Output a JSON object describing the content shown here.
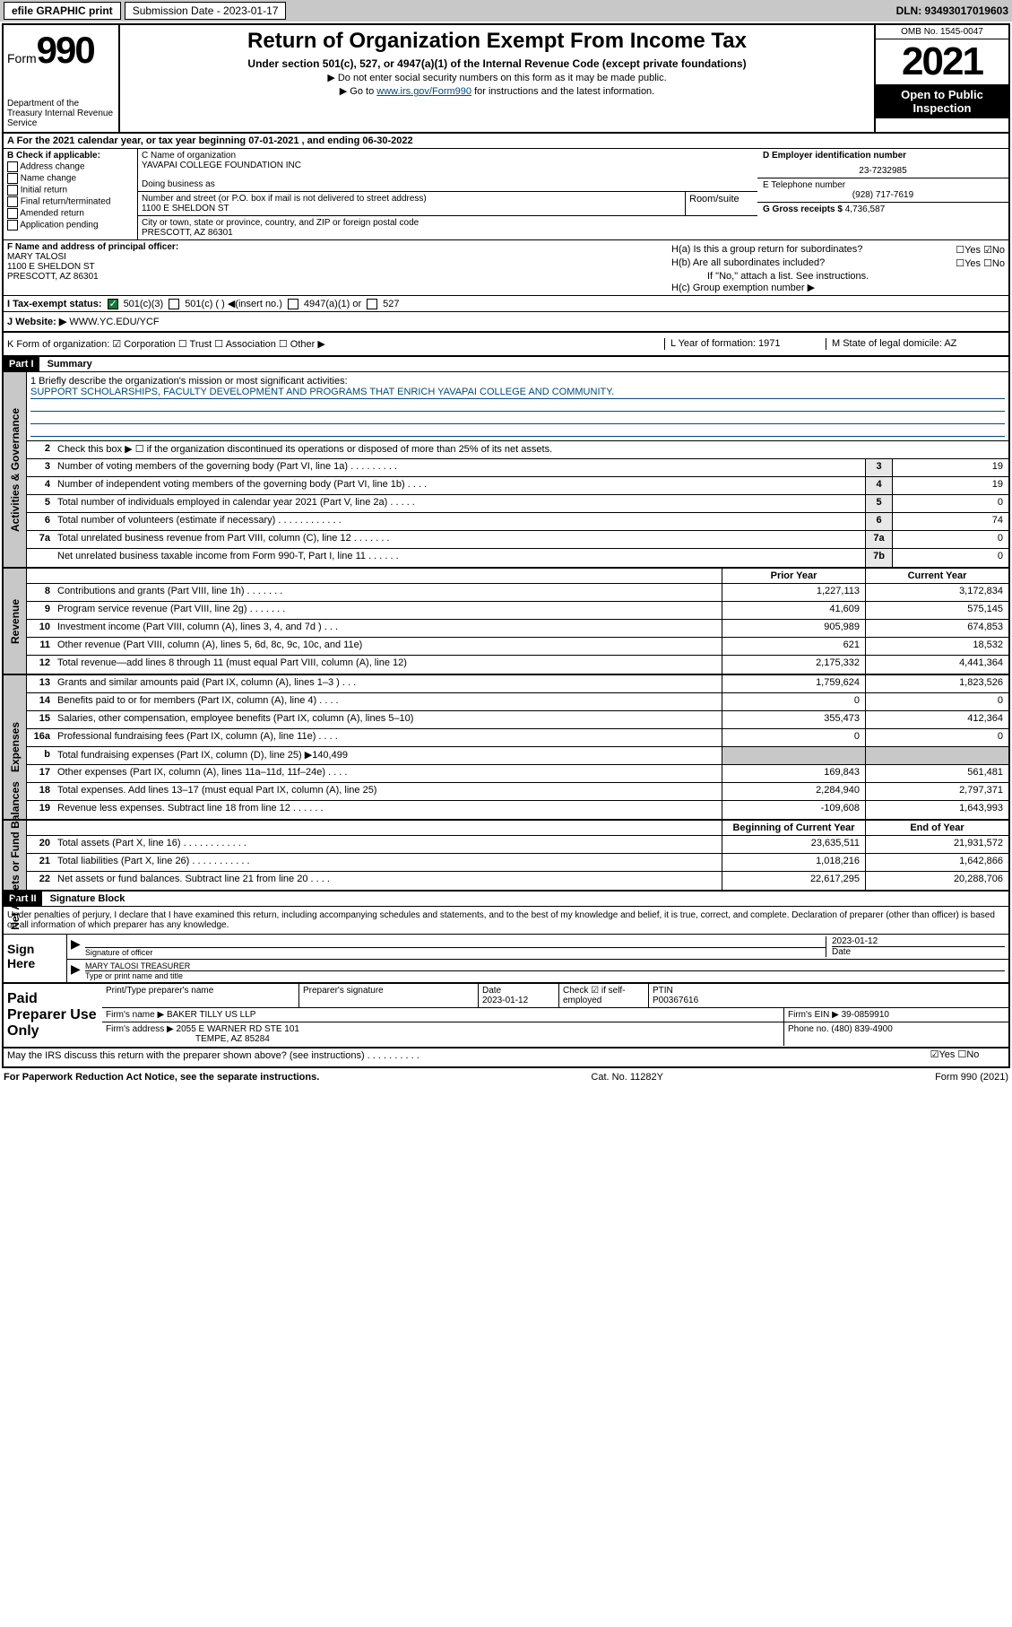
{
  "topbar": {
    "efile": "efile GRAPHIC print",
    "subdate_label": "Submission Date - 2023-01-17",
    "dln": "DLN: 93493017019603"
  },
  "header": {
    "form_label": "Form",
    "form_num": "990",
    "dept": "Department of the Treasury Internal Revenue Service",
    "title": "Return of Organization Exempt From Income Tax",
    "subtitle": "Under section 501(c), 527, or 4947(a)(1) of the Internal Revenue Code (except private foundations)",
    "note1": "▶ Do not enter social security numbers on this form as it may be made public.",
    "note2_pre": "▶ Go to ",
    "note2_link": "www.irs.gov/Form990",
    "note2_post": " for instructions and the latest information.",
    "omb": "OMB No. 1545-0047",
    "year": "2021",
    "otp": "Open to Public Inspection"
  },
  "row_a": "A For the 2021 calendar year, or tax year beginning 07-01-2021  , and ending 06-30-2022",
  "col_b": {
    "head": "B Check if applicable:",
    "opts": [
      "Address change",
      "Name change",
      "Initial return",
      "Final return/terminated",
      "Amended return",
      "Application pending"
    ]
  },
  "col_c": {
    "name_label": "C Name of organization",
    "name": "YAVAPAI COLLEGE FOUNDATION INC",
    "dba_label": "Doing business as",
    "addr_label": "Number and street (or P.O. box if mail is not delivered to street address)",
    "room_label": "Room/suite",
    "addr": "1100 E SHELDON ST",
    "city_label": "City or town, state or province, country, and ZIP or foreign postal code",
    "city": "PRESCOTT, AZ  86301"
  },
  "col_de": {
    "d_label": "D Employer identification number",
    "d_val": "23-7232985",
    "e_label": "E Telephone number",
    "e_val": "(928) 717-7619",
    "g_label": "G Gross receipts $",
    "g_val": "4,736,587"
  },
  "col_f": {
    "label": "F Name and address of principal officer:",
    "name": "MARY TALOSI",
    "addr1": "1100 E SHELDON ST",
    "addr2": "PRESCOTT, AZ  86301"
  },
  "col_h": {
    "ha": "H(a)  Is this a group return for subordinates?",
    "ha_yn": "☐Yes ☑No",
    "hb": "H(b)  Are all subordinates included?",
    "hb_yn": "☐Yes ☐No",
    "hb_note": "If \"No,\" attach a list. See instructions.",
    "hc": "H(c)  Group exemption number ▶"
  },
  "row_i": {
    "label": "I  Tax-exempt status:",
    "o1": "501(c)(3)",
    "o2": "501(c) (  ) ◀(insert no.)",
    "o3": "4947(a)(1) or",
    "o4": "527"
  },
  "row_j": {
    "label": "J  Website: ▶",
    "val": "WWW.YC.EDU/YCF"
  },
  "row_k": {
    "k": "K Form of organization:  ☑ Corporation ☐ Trust ☐ Association ☐ Other ▶",
    "l": "L Year of formation: 1971",
    "m": "M State of legal domicile: AZ"
  },
  "part1": {
    "hdr": "Part I",
    "title": "Summary"
  },
  "mission": {
    "q": "1  Briefly describe the organization's mission or most significant activities:",
    "txt": "SUPPORT SCHOLARSHIPS, FACULTY DEVELOPMENT AND PROGRAMS THAT ENRICH YAVAPAI COLLEGE AND COMMUNITY."
  },
  "gov_lines": [
    {
      "n": "2",
      "t": "Check this box ▶ ☐  if the organization discontinued its operations or disposed of more than 25% of its net assets."
    },
    {
      "n": "3",
      "t": "Number of voting members of the governing body (Part VI, line 1a)  .  .  .  .  .  .  .  .  .",
      "b": "3",
      "v": "19"
    },
    {
      "n": "4",
      "t": "Number of independent voting members of the governing body (Part VI, line 1b)  .  .  .  .",
      "b": "4",
      "v": "19"
    },
    {
      "n": "5",
      "t": "Total number of individuals employed in calendar year 2021 (Part V, line 2a)  .  .  .  .  .",
      "b": "5",
      "v": "0"
    },
    {
      "n": "6",
      "t": "Total number of volunteers (estimate if necessary)  .  .  .  .  .  .  .  .  .  .  .  .",
      "b": "6",
      "v": "74"
    },
    {
      "n": "7a",
      "t": "Total unrelated business revenue from Part VIII, column (C), line 12  .  .  .  .  .  .  .",
      "b": "7a",
      "v": "0"
    },
    {
      "n": "",
      "t": "Net unrelated business taxable income from Form 990-T, Part I, line 11  .  .  .  .  .  .",
      "b": "7b",
      "v": "0"
    }
  ],
  "py_cy": {
    "py": "Prior Year",
    "cy": "Current Year"
  },
  "rev_lines": [
    {
      "n": "8",
      "t": "Contributions and grants (Part VIII, line 1h)  .  .  .  .  .  .  .",
      "py": "1,227,113",
      "cy": "3,172,834"
    },
    {
      "n": "9",
      "t": "Program service revenue (Part VIII, line 2g)  .  .  .  .  .  .  .",
      "py": "41,609",
      "cy": "575,145"
    },
    {
      "n": "10",
      "t": "Investment income (Part VIII, column (A), lines 3, 4, and 7d )  .  .  .",
      "py": "905,989",
      "cy": "674,853"
    },
    {
      "n": "11",
      "t": "Other revenue (Part VIII, column (A), lines 5, 6d, 8c, 9c, 10c, and 11e)",
      "py": "621",
      "cy": "18,532"
    },
    {
      "n": "12",
      "t": "Total revenue—add lines 8 through 11 (must equal Part VIII, column (A), line 12)",
      "py": "2,175,332",
      "cy": "4,441,364"
    }
  ],
  "exp_lines": [
    {
      "n": "13",
      "t": "Grants and similar amounts paid (Part IX, column (A), lines 1–3 )  .  .  .",
      "py": "1,759,624",
      "cy": "1,823,526"
    },
    {
      "n": "14",
      "t": "Benefits paid to or for members (Part IX, column (A), line 4)  .  .  .  .",
      "py": "0",
      "cy": "0"
    },
    {
      "n": "15",
      "t": "Salaries, other compensation, employee benefits (Part IX, column (A), lines 5–10)",
      "py": "355,473",
      "cy": "412,364"
    },
    {
      "n": "16a",
      "t": "Professional fundraising fees (Part IX, column (A), line 11e)  .  .  .  .",
      "py": "0",
      "cy": "0"
    },
    {
      "n": "b",
      "t": "Total fundraising expenses (Part IX, column (D), line 25) ▶140,499",
      "py": "",
      "cy": "",
      "shade": true
    },
    {
      "n": "17",
      "t": "Other expenses (Part IX, column (A), lines 11a–11d, 11f–24e)  .  .  .  .",
      "py": "169,843",
      "cy": "561,481"
    },
    {
      "n": "18",
      "t": "Total expenses. Add lines 13–17 (must equal Part IX, column (A), line 25)",
      "py": "2,284,940",
      "cy": "2,797,371"
    },
    {
      "n": "19",
      "t": "Revenue less expenses. Subtract line 18 from line 12  .  .  .  .  .  .",
      "py": "-109,608",
      "cy": "1,643,993"
    }
  ],
  "na_hdr": {
    "b": "Beginning of Current Year",
    "e": "End of Year"
  },
  "na_lines": [
    {
      "n": "20",
      "t": "Total assets (Part X, line 16)  .  .  .  .  .  .  .  .  .  .  .  .",
      "py": "23,635,511",
      "cy": "21,931,572"
    },
    {
      "n": "21",
      "t": "Total liabilities (Part X, line 26)  .  .  .  .  .  .  .  .  .  .  .",
      "py": "1,018,216",
      "cy": "1,642,866"
    },
    {
      "n": "22",
      "t": "Net assets or fund balances. Subtract line 21 from line 20  .  .  .  .",
      "py": "22,617,295",
      "cy": "20,288,706"
    }
  ],
  "part2": {
    "hdr": "Part II",
    "title": "Signature Block"
  },
  "sig_intro": "Under penalties of perjury, I declare that I have examined this return, including accompanying schedules and statements, and to the best of my knowledge and belief, it is true, correct, and complete. Declaration of preparer (other than officer) is based on all information of which preparer has any knowledge.",
  "sign": {
    "label": "Sign Here",
    "sig_label": "Signature of officer",
    "date": "2023-01-12",
    "date_label": "Date",
    "name": "MARY TALOSI TREASURER",
    "name_label": "Type or print name and title"
  },
  "prep": {
    "label": "Paid Preparer Use Only",
    "r1": {
      "c1": "Print/Type preparer's name",
      "c2": "Preparer's signature",
      "c3l": "Date",
      "c3v": "2023-01-12",
      "c4": "Check ☑ if self-employed",
      "c5l": "PTIN",
      "c5v": "P00367616"
    },
    "r2": {
      "l": "Firm's name    ▶",
      "v": "BAKER TILLY US LLP",
      "einl": "Firm's EIN ▶",
      "einv": "39-0859910"
    },
    "r3": {
      "l": "Firm's address ▶",
      "v1": "2055 E WARNER RD STE 101",
      "v2": "TEMPE, AZ  85284",
      "phl": "Phone no.",
      "phv": "(480) 839-4900"
    }
  },
  "discuss": {
    "q": "May the IRS discuss this return with the preparer shown above? (see instructions)  .  .  .  .  .  .  .  .  .  .",
    "yn": "☑Yes ☐No"
  },
  "footer": {
    "l": "For Paperwork Reduction Act Notice, see the separate instructions.",
    "c": "Cat. No. 11282Y",
    "r": "Form 990 (2021)"
  },
  "side": {
    "gov": "Activities & Governance",
    "rev": "Revenue",
    "exp": "Expenses",
    "na": "Net Assets or Fund Balances"
  }
}
